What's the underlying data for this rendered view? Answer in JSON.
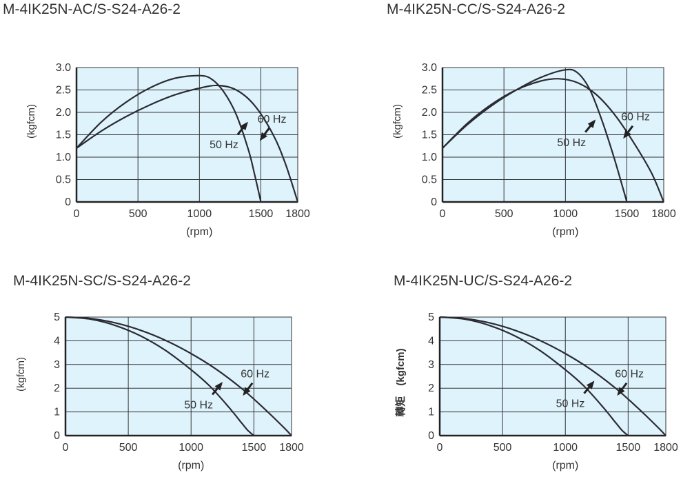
{
  "charts": [
    {
      "title": "M-4IK25N-AC/S-S24-A26-2",
      "chart_data": {
        "type": "line",
        "xlabel": "(rpm)",
        "ylabel": "(kgfcm)",
        "xlim": [
          0,
          1800
        ],
        "ylim": [
          0,
          3.0
        ],
        "xticks": [
          0,
          500,
          1000,
          1500,
          1800
        ],
        "xtick_labels": [
          "0",
          "500",
          "1000",
          "1500",
          "1800"
        ],
        "yticks": [
          0,
          0.5,
          1.0,
          1.5,
          2.0,
          2.5,
          3.0
        ],
        "ytick_labels": [
          "0",
          "0.5",
          "1.0",
          "1.5",
          "2.0",
          "2.5",
          "3.0"
        ],
        "series": [
          {
            "name": "50 Hz",
            "x": [
              0,
              200,
              400,
              600,
              800,
              1000,
              1100,
              1200,
              1300,
              1400,
              1450,
              1500
            ],
            "y": [
              1.2,
              1.78,
              2.22,
              2.55,
              2.76,
              2.82,
              2.74,
              2.45,
              1.95,
              1.15,
              0.6,
              0.0
            ]
          },
          {
            "name": "60 Hz",
            "x": [
              0,
              200,
              400,
              600,
              800,
              1000,
              1150,
              1300,
              1450,
              1600,
              1700,
              1800
            ],
            "y": [
              1.2,
              1.58,
              1.9,
              2.17,
              2.39,
              2.54,
              2.6,
              2.5,
              2.15,
              1.5,
              0.85,
              0.0
            ]
          }
        ],
        "annotations": [
          {
            "text": "60 Hz",
            "x": 1590,
            "y": 1.77
          },
          {
            "text": "50 Hz",
            "x": 1200,
            "y": 1.2
          }
        ]
      }
    },
    {
      "title": "M-4IK25N-CC/S-S24-A26-2",
      "chart_data": {
        "type": "line",
        "xlabel": "(rpm)",
        "ylabel": "(kgfcm)",
        "xlim": [
          0,
          1800
        ],
        "ylim": [
          0,
          3.0
        ],
        "xticks": [
          0,
          500,
          1000,
          1500,
          1800
        ],
        "xtick_labels": [
          "0",
          "500",
          "1000",
          "1500",
          "1800"
        ],
        "yticks": [
          0,
          0.5,
          1.0,
          1.5,
          2.0,
          2.5,
          3.0
        ],
        "ytick_labels": [
          "0",
          "0.5",
          "1.0",
          "1.5",
          "2.0",
          "2.5",
          "3.0"
        ],
        "series": [
          {
            "name": "50 Hz",
            "x": [
              0,
              200,
              400,
              600,
              800,
              1000,
              1100,
              1200,
              1300,
              1400,
              1500
            ],
            "y": [
              1.2,
              1.72,
              2.15,
              2.5,
              2.78,
              2.95,
              2.88,
              2.5,
              1.8,
              0.95,
              0.0
            ]
          },
          {
            "name": "60 Hz",
            "x": [
              0,
              200,
              400,
              600,
              800,
              950,
              1100,
              1250,
              1400,
              1550,
              1700,
              1800
            ],
            "y": [
              1.2,
              1.75,
              2.18,
              2.5,
              2.7,
              2.75,
              2.66,
              2.4,
              1.95,
              1.35,
              0.65,
              0.0
            ]
          }
        ],
        "annotations": [
          {
            "text": "60 Hz",
            "x": 1570,
            "y": 1.82
          },
          {
            "text": "50 Hz",
            "x": 1050,
            "y": 1.25
          }
        ]
      }
    },
    {
      "title": "M-4IK25N-SC/S-S24-A26-2",
      "chart_data": {
        "type": "line",
        "xlabel": "(rpm)",
        "ylabel": "(kgfcm)",
        "xlim": [
          0,
          1800
        ],
        "ylim": [
          0,
          5
        ],
        "xticks": [
          0,
          500,
          1000,
          1500,
          1800
        ],
        "xtick_labels": [
          "0",
          "500",
          "1000",
          "1500",
          "1800"
        ],
        "yticks": [
          0,
          1,
          2,
          3,
          4,
          5
        ],
        "ytick_labels": [
          "0",
          "1",
          "2",
          "3",
          "4",
          "5"
        ],
        "series": [
          {
            "name": "50 Hz",
            "x": [
              0,
              200,
              400,
              600,
              800,
              1000,
              1150,
              1300,
              1400,
              1450,
              1500
            ],
            "y": [
              5.0,
              4.91,
              4.64,
              4.2,
              3.58,
              2.78,
              2.08,
              1.2,
              0.55,
              0.23,
              0.0
            ]
          },
          {
            "name": "60 Hz",
            "x": [
              0,
              200,
              400,
              600,
              800,
              1000,
              1200,
              1400,
              1550,
              1650,
              1750,
              1800
            ],
            "y": [
              5.0,
              4.94,
              4.75,
              4.44,
              4.01,
              3.46,
              2.8,
              2.0,
              1.3,
              0.8,
              0.28,
              0.0
            ]
          }
        ],
        "annotations": [
          {
            "text": "60 Hz",
            "x": 1510,
            "y": 2.45
          },
          {
            "text": "50 Hz",
            "x": 1060,
            "y": 1.15
          }
        ]
      }
    },
    {
      "title": "M-4IK25N-UC/S-S24-A26-2",
      "chart_data": {
        "type": "line",
        "xlabel": "(rpm)",
        "ylabel": "轉矩　(kgfcm)",
        "xlim": [
          0,
          1800
        ],
        "ylim": [
          0,
          5
        ],
        "xticks": [
          0,
          500,
          1000,
          1500,
          1800
        ],
        "xtick_labels": [
          "0",
          "500",
          "1000",
          "1500",
          "1800"
        ],
        "yticks": [
          0,
          1,
          2,
          3,
          4,
          5
        ],
        "ytick_labels": [
          "0",
          "1",
          "2",
          "3",
          "4",
          "5"
        ],
        "series": [
          {
            "name": "50 Hz",
            "x": [
              0,
              200,
              400,
              600,
              800,
              1000,
              1150,
              1300,
              1400,
              1450,
              1500
            ],
            "y": [
              5.0,
              4.91,
              4.64,
              4.2,
              3.58,
              2.78,
              2.08,
              1.2,
              0.55,
              0.23,
              0.0
            ]
          },
          {
            "name": "60 Hz",
            "x": [
              0,
              200,
              400,
              600,
              800,
              1000,
              1200,
              1400,
              1550,
              1650,
              1750,
              1800
            ],
            "y": [
              5.0,
              4.94,
              4.75,
              4.44,
              4.01,
              3.46,
              2.8,
              2.0,
              1.3,
              0.8,
              0.28,
              0.0
            ]
          }
        ],
        "annotations": [
          {
            "text": "60 Hz",
            "x": 1510,
            "y": 2.45
          },
          {
            "text": "50 Hz",
            "x": 1040,
            "y": 1.2
          }
        ]
      }
    }
  ]
}
